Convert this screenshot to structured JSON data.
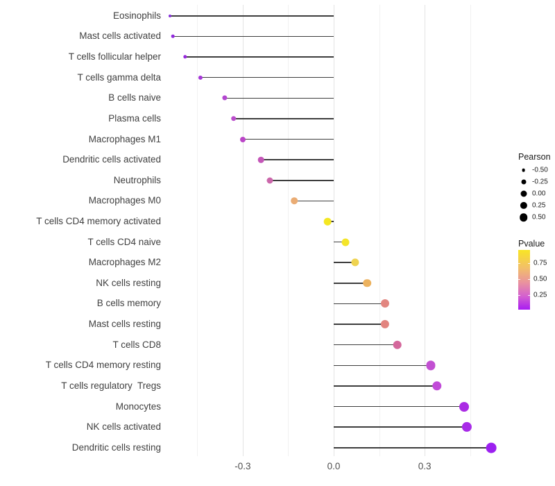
{
  "chart_data": {
    "type": "lollipop",
    "title": "",
    "xlabel": "",
    "ylabel": "",
    "x_axis": {
      "major_ticks": [
        -0.3,
        0.0,
        0.3
      ],
      "tick_labels": [
        "-0.3",
        "0.0",
        "0.3"
      ],
      "minor_ticks": [
        -0.45,
        -0.15,
        0.15,
        0.45
      ],
      "range": [
        -0.56,
        0.54
      ],
      "grid": true
    },
    "value_name": "Pearson",
    "color_name": "Pvalue",
    "points": [
      {
        "label": "Eosinophils",
        "pearson": -0.54,
        "color": "#8430d8",
        "radius": 2.0
      },
      {
        "label": "Mast cells activated",
        "pearson": -0.53,
        "color": "#9129dc",
        "radius": 2.3
      },
      {
        "label": "T cells follicular helper",
        "pearson": -0.49,
        "color": "#982bdd",
        "radius": 2.7
      },
      {
        "label": "T cells gamma delta",
        "pearson": -0.44,
        "color": "#a637d8",
        "radius": 3.1
      },
      {
        "label": "B cells naive",
        "pearson": -0.36,
        "color": "#b347d0",
        "radius": 3.6
      },
      {
        "label": "Plasma cells",
        "pearson": -0.33,
        "color": "#ba4ccb",
        "radius": 3.8
      },
      {
        "label": "Macrophages M1",
        "pearson": -0.3,
        "color": "#bb46c8",
        "radius": 4.0
      },
      {
        "label": "Dendritic cells activated",
        "pearson": -0.24,
        "color": "#c456b8",
        "radius": 4.3
      },
      {
        "label": "Neutrophils",
        "pearson": -0.21,
        "color": "#cb67ab",
        "radius": 4.5
      },
      {
        "label": "Macrophages M0",
        "pearson": -0.13,
        "color": "#eaac74",
        "radius": 4.8
      },
      {
        "label": "T cells CD4 memory activated",
        "pearson": -0.02,
        "color": "#f4e722",
        "radius": 5.3
      },
      {
        "label": "T cells CD4 naive",
        "pearson": 0.04,
        "color": "#f4e52a",
        "radius": 5.5
      },
      {
        "label": "Macrophages M2",
        "pearson": 0.07,
        "color": "#efd350",
        "radius": 5.6
      },
      {
        "label": "NK cells resting",
        "pearson": 0.11,
        "color": "#ecb25f",
        "radius": 5.8
      },
      {
        "label": "B cells memory",
        "pearson": 0.17,
        "color": "#e28680",
        "radius": 6.0
      },
      {
        "label": "Mast cells resting",
        "pearson": 0.17,
        "color": "#e2847f",
        "radius": 6.1
      },
      {
        "label": "T cells CD8",
        "pearson": 0.21,
        "color": "#d4679b",
        "radius": 6.3
      },
      {
        "label": "T cells CD4 memory resting",
        "pearson": 0.32,
        "color": "#c250d2",
        "radius": 6.6
      },
      {
        "label": "T cells regulatory  Tregs",
        "pearson": 0.34,
        "color": "#c14bd8",
        "radius": 6.7
      },
      {
        "label": "Monocytes",
        "pearson": 0.43,
        "color": "#aa2be4",
        "radius": 7.0
      },
      {
        "label": "NK cells activated",
        "pearson": 0.44,
        "color": "#a82be8",
        "radius": 7.1
      },
      {
        "label": "Dendritic cells resting",
        "pearson": 0.52,
        "color": "#9c20f0",
        "radius": 7.4
      }
    ],
    "legend_size": {
      "title": "Pearson",
      "dot_color": "#000000",
      "entries": [
        {
          "label": "-0.50",
          "radius": 2.4
        },
        {
          "label": "-0.25",
          "radius": 3.5
        },
        {
          "label": "0.00",
          "radius": 4.5
        },
        {
          "label": "0.25",
          "radius": 5.1
        },
        {
          "label": "0.50",
          "radius": 5.8
        }
      ]
    },
    "legend_color": {
      "title": "Pvalue",
      "tick_labels": [
        "0.75",
        "0.50",
        "0.25"
      ],
      "gradient": [
        "#f8e524",
        "#f2bf69",
        "#e9929f",
        "#d35fd0",
        "#a81bf2"
      ]
    },
    "stem_color": "#3c3c3c"
  }
}
